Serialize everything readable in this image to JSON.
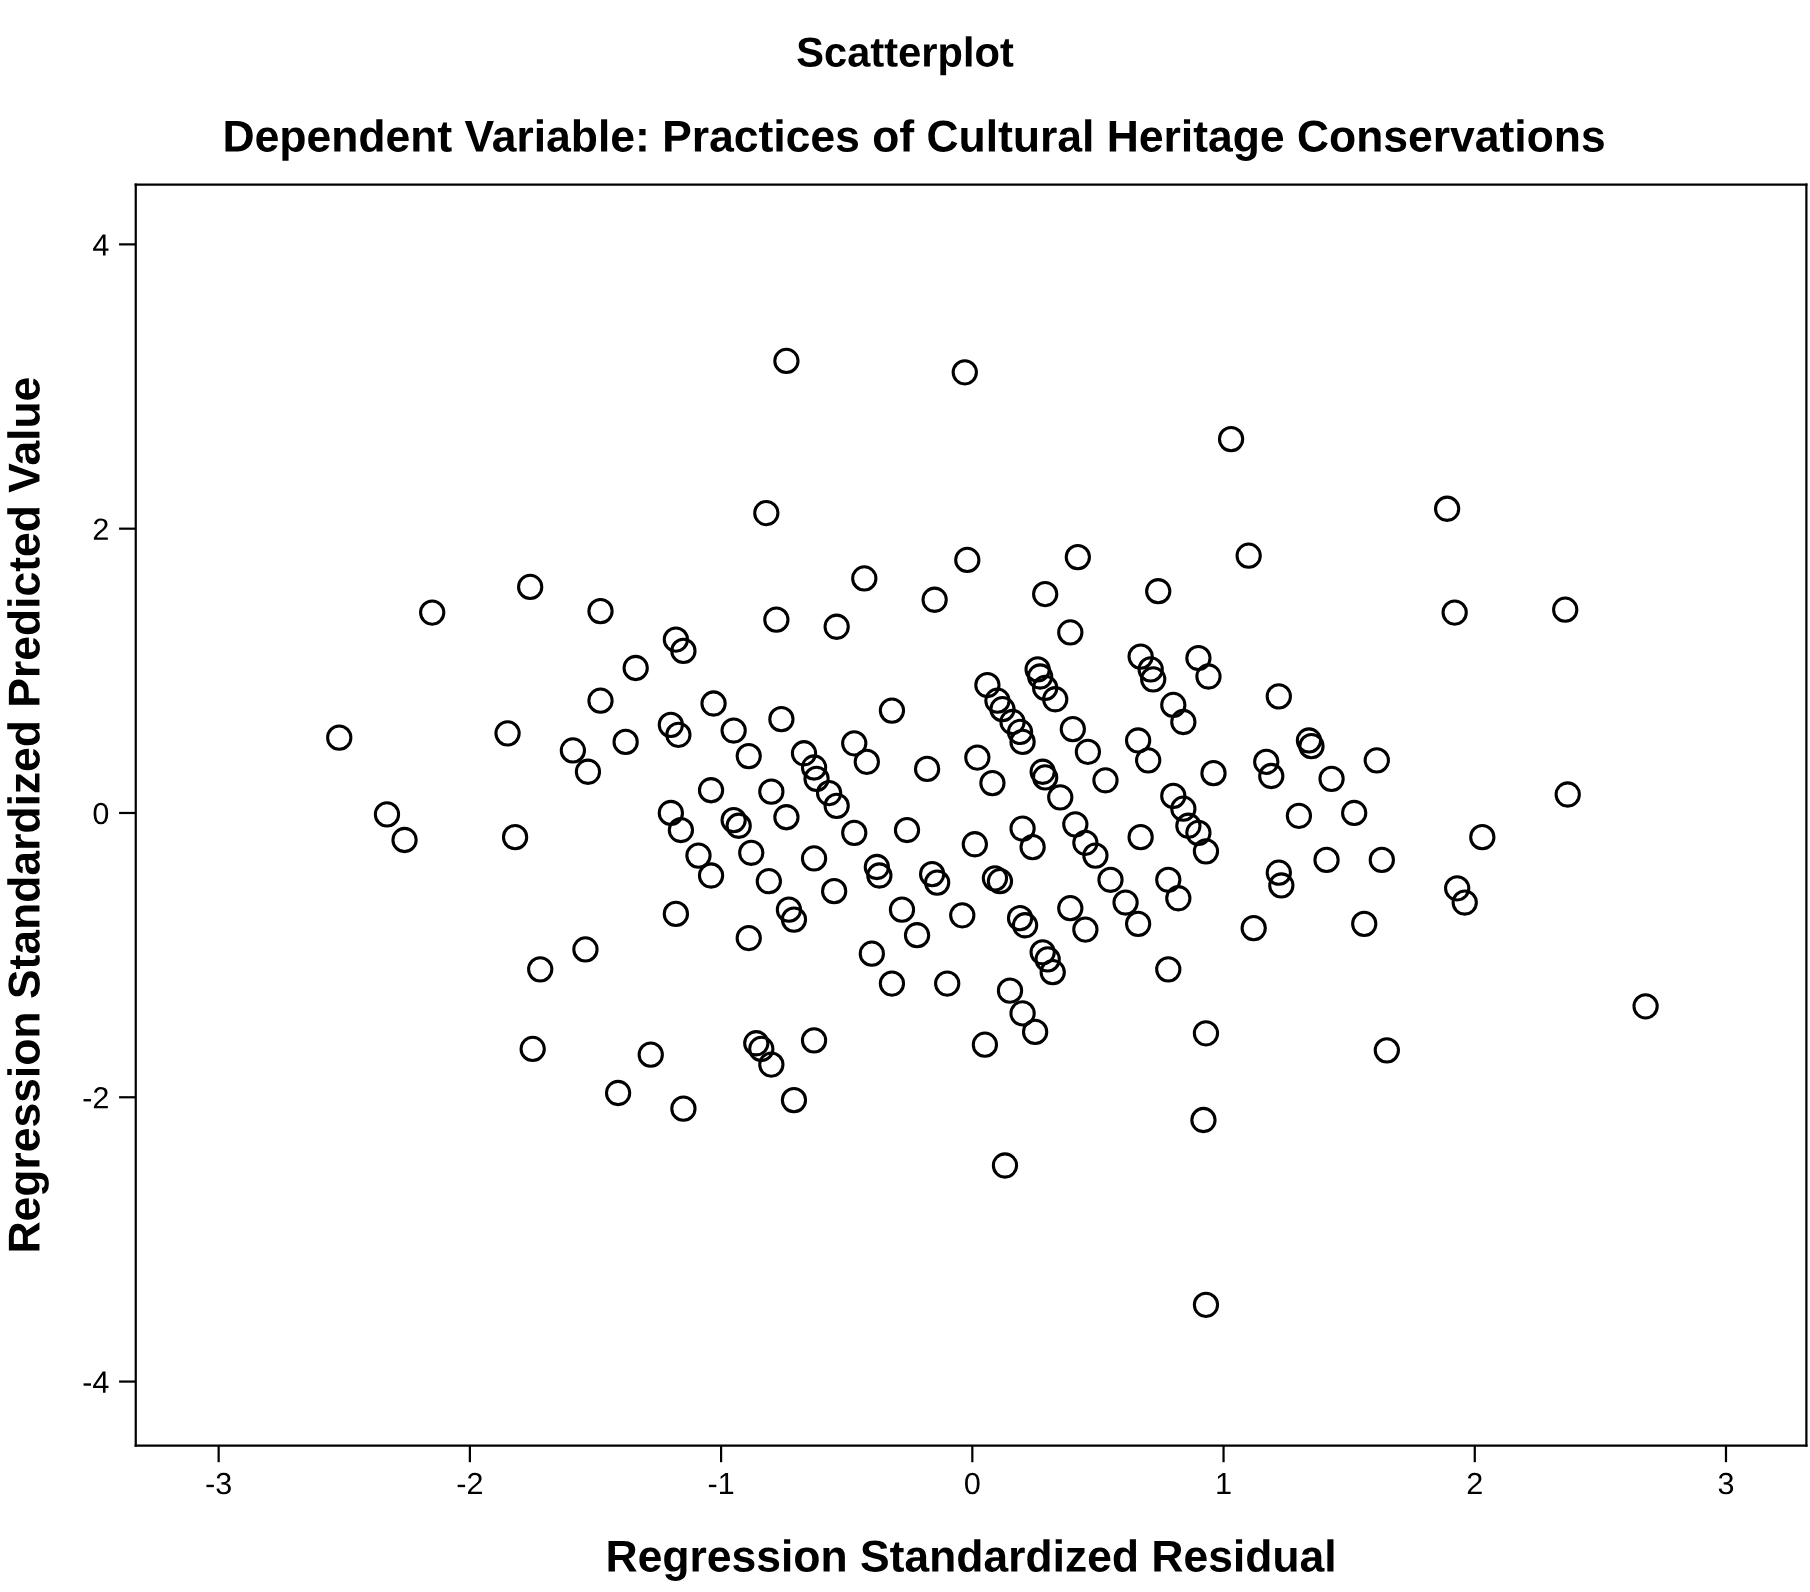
{
  "chart_data": {
    "type": "scatter",
    "title": "Scatterplot",
    "subtitle": "Dependent Variable: Practices of Cultural Heritage Conservations",
    "xlabel": "Regression Standardized Residual",
    "ylabel": "Regression Standardized Predicted Value",
    "xlim": [
      -3.33,
      3.32
    ],
    "ylim": [
      -4.45,
      4.42
    ],
    "xticks": [
      -3,
      -2,
      -1,
      0,
      1,
      2,
      3
    ],
    "yticks": [
      -4,
      -2,
      0,
      2,
      4
    ],
    "grid": false,
    "marker": "circle",
    "series": [
      {
        "color": "#000000",
        "x": [
          1.03,
          1.89,
          0.42,
          1.1,
          0.29,
          0.74,
          1.92,
          2.36,
          0.39,
          0.06,
          0.26,
          0.27,
          0.1,
          0.12,
          0.29,
          0.33,
          0.67,
          0.72,
          0.71,
          0.9,
          0.94,
          1.22,
          0.8,
          0.84,
          0.16,
          0.19,
          0.2,
          0.4,
          0.46,
          0.02,
          0.08,
          0.66,
          0.7,
          0.53,
          0.28,
          0.29,
          0.35,
          0.96,
          1.17,
          1.19,
          1.34,
          1.35,
          1.43,
          1.61,
          2.37,
          0.8,
          0.84,
          0.86,
          0.9,
          0.93,
          0.2,
          0.24,
          0.01,
          0.41,
          0.45,
          0.49,
          0.67,
          1.3,
          1.52,
          2.03,
          1.41,
          1.63,
          1.22,
          1.23,
          0.09,
          0.11,
          0.55,
          0.78,
          0.82,
          1.93,
          1.96,
          0.61,
          0.66,
          0.39,
          0.45,
          0.19,
          0.21,
          1.12,
          1.56,
          0.28,
          0.3,
          0.32,
          0.78,
          0.15,
          2.68,
          0.2,
          0.25,
          0.05,
          0.93,
          1.65,
          0.92,
          0.13,
          0.93,
          -0.74,
          -0.03,
          -0.82,
          -0.02,
          -1.76,
          -2.15,
          -1.48,
          -0.43,
          -0.15,
          -0.78,
          -0.54,
          -1.18,
          -1.15,
          -1.34,
          -1.48,
          -1.03,
          -0.32,
          -0.76,
          -1.85,
          -2.52,
          -1.59,
          -1.53,
          -1.38,
          -1.2,
          -1.17,
          -0.95,
          -0.89,
          -0.67,
          -0.63,
          -0.62,
          -0.57,
          -0.54,
          -0.47,
          -0.47,
          -0.42,
          -0.18,
          -0.8,
          -1.04,
          -0.74,
          -0.95,
          -0.93,
          -1.2,
          -1.16,
          -0.26,
          -0.63,
          -0.88,
          -1.09,
          -1.04,
          -0.81,
          -0.38,
          -0.37,
          -0.16,
          -0.14,
          -0.04,
          -0.55,
          -0.28,
          -0.22,
          -0.73,
          -0.71,
          -1.18,
          -0.89,
          -0.4,
          -0.32,
          -0.1,
          -1.82,
          -2.33,
          -2.26,
          -1.54,
          -1.72,
          -1.75,
          -1.28,
          -1.41,
          -1.15,
          -0.86,
          -0.84,
          -0.8,
          -0.63,
          -0.71
        ],
        "values": [
          2.63,
          2.14,
          1.8,
          1.81,
          1.54,
          1.56,
          1.41,
          1.43,
          1.27,
          0.9,
          1.01,
          0.96,
          0.79,
          0.73,
          0.88,
          0.8,
          1.1,
          0.94,
          1.01,
          1.09,
          0.96,
          0.82,
          0.76,
          0.64,
          0.64,
          0.57,
          0.5,
          0.59,
          0.43,
          0.39,
          0.21,
          0.51,
          0.37,
          0.23,
          0.29,
          0.25,
          0.11,
          0.28,
          0.36,
          0.26,
          0.51,
          0.47,
          0.24,
          0.37,
          0.13,
          0.12,
          0.03,
          -0.09,
          -0.14,
          -0.27,
          -0.11,
          -0.24,
          -0.22,
          -0.08,
          -0.21,
          -0.3,
          -0.17,
          -0.02,
          0.0,
          -0.17,
          -0.33,
          -0.33,
          -0.42,
          -0.51,
          -0.46,
          -0.48,
          -0.47,
          -0.47,
          -0.6,
          -0.53,
          -0.63,
          -0.63,
          -0.78,
          -0.67,
          -0.82,
          -0.74,
          -0.79,
          -0.81,
          -0.78,
          -0.98,
          -1.03,
          -1.12,
          -1.1,
          -1.25,
          -1.36,
          -1.41,
          -1.54,
          -1.63,
          -1.55,
          -1.67,
          -2.16,
          -2.48,
          -3.46,
          3.18,
          3.1,
          2.11,
          1.78,
          1.59,
          1.41,
          1.42,
          1.65,
          1.5,
          1.36,
          1.31,
          1.22,
          1.14,
          1.02,
          0.79,
          0.77,
          0.72,
          0.66,
          0.56,
          0.53,
          0.44,
          0.29,
          0.5,
          0.62,
          0.55,
          0.58,
          0.4,
          0.42,
          0.32,
          0.24,
          0.14,
          0.05,
          -0.14,
          0.49,
          0.36,
          0.31,
          0.15,
          0.16,
          -0.03,
          -0.05,
          -0.09,
          0.0,
          -0.12,
          -0.12,
          -0.32,
          -0.28,
          -0.3,
          -0.44,
          -0.48,
          -0.38,
          -0.44,
          -0.43,
          -0.49,
          -0.72,
          -0.55,
          -0.68,
          -0.86,
          -0.68,
          -0.75,
          -0.71,
          -0.88,
          -0.99,
          -1.2,
          -1.2,
          -0.17,
          -0.01,
          -0.19,
          -0.96,
          -1.1,
          -1.66,
          -1.7,
          -1.97,
          -2.08,
          -1.62,
          -1.66,
          -1.77,
          -1.6,
          -2.02
        ]
      }
    ]
  }
}
